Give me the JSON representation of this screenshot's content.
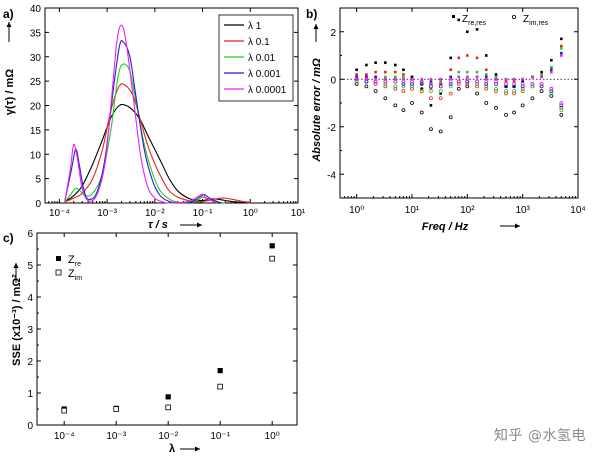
{
  "chart_data": [
    {
      "panel": "a)",
      "type": "line",
      "xlabel": "τ / s",
      "ylabel": "γ(τ) / mΩ",
      "xscale": "log",
      "xlim": [
        5e-05,
        10
      ],
      "ylim": [
        0,
        40
      ],
      "x_ticks": [
        "10⁻⁴",
        "10⁻³",
        "10⁻²",
        "10⁻¹",
        "10⁰",
        "10¹"
      ],
      "y_ticks": [
        "0",
        "5",
        "10",
        "15",
        "20",
        "25",
        "30",
        "35",
        "40"
      ],
      "legend_position": "top-right",
      "series": [
        {
          "name": "λ 1",
          "color": "#000000",
          "x": [
            0.00013,
            0.0002,
            0.0003,
            0.0005,
            0.0008,
            0.0012,
            0.0018,
            0.0025,
            0.0035,
            0.005,
            0.007,
            0.01,
            0.015,
            0.02,
            0.03,
            0.05,
            0.07,
            0.1,
            0.15,
            0.2,
            0.3,
            0.5,
            1
          ],
          "y": [
            0.3,
            1.5,
            3.5,
            8,
            13,
            17.5,
            20,
            20,
            19,
            17,
            14,
            11,
            7.5,
            5,
            2.5,
            1,
            0.6,
            0.5,
            0.8,
            0.8,
            0.5,
            0.2,
            0
          ]
        },
        {
          "name": "λ 0.1",
          "color": "#e8241c",
          "x": [
            0.00013,
            0.0002,
            0.0003,
            0.0005,
            0.0008,
            0.0012,
            0.0018,
            0.0025,
            0.0035,
            0.005,
            0.007,
            0.01,
            0.015,
            0.02,
            0.03,
            0.05,
            0.07,
            0.1,
            0.15,
            0.2,
            0.3,
            0.5,
            1
          ],
          "y": [
            0.2,
            1,
            2,
            5,
            11,
            19,
            24,
            24,
            22,
            17,
            12,
            8,
            4.5,
            2.5,
            1.2,
            0.5,
            0.3,
            0.3,
            0.6,
            0.9,
            1,
            0.6,
            0
          ]
        },
        {
          "name": "λ 0.01",
          "color": "#22cc22",
          "x": [
            0.00013,
            0.00018,
            0.00022,
            0.00027,
            0.00035,
            0.0005,
            0.0008,
            0.0012,
            0.0017,
            0.0022,
            0.003,
            0.004,
            0.006,
            0.009,
            0.013,
            0.02,
            0.03,
            0.05,
            0.08,
            0.1,
            0.13,
            0.2,
            0.3
          ],
          "y": [
            0.2,
            2,
            3,
            2.5,
            1.5,
            2,
            6,
            15,
            26,
            28.5,
            27,
            21,
            12,
            6,
            2.5,
            0.8,
            0.2,
            0.1,
            0.6,
            1.2,
            0.8,
            0.2,
            0
          ]
        },
        {
          "name": "λ 0.001",
          "color": "#2222cc",
          "x": [
            0.00013,
            0.00018,
            0.00022,
            0.00026,
            0.00032,
            0.0004,
            0.0006,
            0.0009,
            0.0013,
            0.0018,
            0.0022,
            0.003,
            0.004,
            0.006,
            0.009,
            0.013,
            0.02,
            0.03,
            0.06,
            0.09,
            0.11,
            0.15,
            0.25
          ],
          "y": [
            0.3,
            7,
            11,
            8,
            3,
            0.8,
            2,
            9,
            22,
            32,
            33,
            30,
            22,
            11,
            4.5,
            1.5,
            0.3,
            0.1,
            0.3,
            1.3,
            1.7,
            0.8,
            0
          ]
        },
        {
          "name": "λ 0.0001",
          "color": "#ee22ee",
          "x": [
            0.00013,
            0.00017,
            0.0002,
            0.00024,
            0.0003,
            0.0004,
            0.0006,
            0.0009,
            0.0012,
            0.0016,
            0.002,
            0.0025,
            0.0035,
            0.005,
            0.007,
            0.01,
            0.015,
            0.02,
            0.05,
            0.08,
            0.1,
            0.12,
            0.2
          ],
          "y": [
            0.3,
            7,
            12,
            9,
            3,
            0.5,
            1.5,
            8,
            20,
            33,
            36.5,
            33,
            22,
            10,
            3.5,
            1,
            0.2,
            0,
            0.3,
            1.3,
            1.8,
            1,
            0
          ]
        }
      ]
    },
    {
      "panel": "b)",
      "type": "scatter",
      "xlabel": "Freq / Hz",
      "ylabel": "Absolute error / mΩ",
      "xscale": "log",
      "xlim": [
        0.5,
        10000
      ],
      "ylim": [
        -5,
        3
      ],
      "x_ticks": [
        "10⁰",
        "10¹",
        "10²",
        "10³",
        "10⁴"
      ],
      "y_ticks": [
        "-4",
        "-2",
        "0",
        "2"
      ],
      "zero_line": true,
      "legend_position": "top",
      "legend": [
        "Z_re,res",
        "Z_im,res"
      ],
      "series": [
        {
          "color": "#000000",
          "marker": "filled",
          "x": [
            1,
            1.5,
            2.2,
            3.3,
            5,
            7,
            10,
            15,
            22,
            33,
            50,
            70,
            100,
            150,
            220,
            330,
            500,
            700,
            1000,
            1500,
            2200,
            3300,
            5000
          ],
          "y": [
            0.4,
            0.6,
            0.7,
            0.7,
            0.6,
            0.4,
            0.1,
            -0.4,
            -1.1,
            -0.6,
            0.9,
            2.5,
            2.0,
            2.1,
            1.0,
            0.2,
            -0.3,
            -0.3,
            -0.1,
            0.1,
            0.3,
            0.8,
            1.7
          ]
        },
        {
          "color": "#000000",
          "marker": "open",
          "x": [
            1,
            1.5,
            2.2,
            3.3,
            5,
            7,
            10,
            15,
            22,
            33,
            50,
            70,
            100,
            150,
            220,
            330,
            500,
            700,
            1000,
            1500,
            2200,
            3300,
            5000
          ],
          "y": [
            -0.2,
            -0.3,
            -0.5,
            -0.8,
            -1.1,
            -1.3,
            -1.0,
            -1.4,
            -2.1,
            -2.2,
            -1.6,
            -0.4,
            -0.3,
            -0.6,
            -1.0,
            -1.2,
            -1.5,
            -1.4,
            -1.1,
            -0.8,
            -0.5,
            -0.7,
            -1.5
          ]
        },
        {
          "color": "#e8241c",
          "marker": "filled",
          "x": [
            1,
            1.5,
            2.2,
            3.3,
            5,
            7,
            10,
            15,
            22,
            33,
            50,
            70,
            100,
            150,
            220,
            330,
            500,
            700,
            1000,
            1500,
            2200,
            3300,
            5000
          ],
          "y": [
            0.2,
            0.2,
            0.3,
            0.3,
            0.3,
            0.2,
            0.0,
            -0.2,
            -0.4,
            -0.2,
            0.4,
            0.9,
            1.0,
            0.9,
            0.4,
            0.1,
            -0.1,
            -0.1,
            0.0,
            0.1,
            0.2,
            0.5,
            1.4
          ]
        },
        {
          "color": "#e8241c",
          "marker": "open",
          "x": [
            1,
            1.5,
            2.2,
            3.3,
            5,
            7,
            10,
            15,
            22,
            33,
            50,
            70,
            100,
            150,
            220,
            330,
            500,
            700,
            1000,
            1500,
            2200,
            3300,
            5000
          ],
          "y": [
            -0.1,
            -0.1,
            -0.2,
            -0.3,
            -0.4,
            -0.5,
            -0.4,
            -0.5,
            -0.8,
            -0.8,
            -0.6,
            -0.2,
            -0.2,
            -0.3,
            -0.4,
            -0.5,
            -0.6,
            -0.6,
            -0.5,
            -0.3,
            -0.2,
            -0.4,
            -1.2
          ]
        },
        {
          "color": "#22cc22",
          "marker": "filled",
          "x": [
            1,
            1.5,
            2.2,
            3.3,
            5,
            7,
            10,
            15,
            22,
            33,
            50,
            70,
            100,
            150,
            220,
            330,
            500,
            700,
            1000,
            1500,
            2200,
            3300,
            5000
          ],
          "y": [
            0.1,
            0.1,
            0.1,
            0.1,
            0.1,
            0.1,
            0.0,
            -0.1,
            -0.2,
            -0.1,
            0.1,
            0.3,
            0.3,
            0.3,
            0.2,
            0.1,
            0.0,
            0.0,
            0.0,
            0.1,
            0.2,
            0.5,
            1.3
          ]
        },
        {
          "color": "#22cc22",
          "marker": "open",
          "x": [
            1,
            1.5,
            2.2,
            3.3,
            5,
            7,
            10,
            15,
            22,
            33,
            50,
            70,
            100,
            150,
            220,
            330,
            500,
            700,
            1000,
            1500,
            2200,
            3300,
            5000
          ],
          "y": [
            -0.1,
            -0.1,
            -0.1,
            -0.2,
            -0.3,
            -0.3,
            -0.3,
            -0.4,
            -0.5,
            -0.5,
            -0.3,
            -0.1,
            -0.1,
            -0.2,
            -0.3,
            -0.4,
            -0.5,
            -0.5,
            -0.4,
            -0.3,
            -0.3,
            -0.6,
            -1.3
          ]
        },
        {
          "color": "#2222cc",
          "marker": "filled",
          "x": [
            1,
            1.5,
            2.2,
            3.3,
            5,
            7,
            10,
            15,
            22,
            33,
            50,
            70,
            100,
            150,
            220,
            330,
            500,
            700,
            1000,
            1500,
            2200,
            3300,
            5000
          ],
          "y": [
            0.1,
            0.1,
            0.1,
            0.0,
            0.0,
            0.0,
            0.0,
            0.0,
            -0.1,
            0.0,
            0.1,
            0.1,
            0.1,
            0.1,
            0.1,
            0.0,
            0.0,
            0.0,
            0.0,
            0.1,
            0.1,
            0.4,
            1.1
          ]
        },
        {
          "color": "#2222cc",
          "marker": "open",
          "x": [
            1,
            1.5,
            2.2,
            3.3,
            5,
            7,
            10,
            15,
            22,
            33,
            50,
            70,
            100,
            150,
            220,
            330,
            500,
            700,
            1000,
            1500,
            2200,
            3300,
            5000
          ],
          "y": [
            0.0,
            -0.1,
            -0.1,
            -0.1,
            -0.1,
            -0.2,
            -0.2,
            -0.2,
            -0.3,
            -0.3,
            -0.2,
            -0.1,
            -0.1,
            -0.1,
            -0.2,
            -0.2,
            -0.3,
            -0.3,
            -0.3,
            -0.2,
            -0.3,
            -0.5,
            -1.1
          ]
        },
        {
          "color": "#ee22ee",
          "marker": "filled",
          "x": [
            1,
            1.5,
            2.2,
            3.3,
            5,
            7,
            10,
            15,
            22,
            33,
            50,
            70,
            100,
            150,
            220,
            330,
            500,
            700,
            1000,
            1500,
            2200,
            3300,
            5000
          ],
          "y": [
            0.0,
            0.0,
            0.0,
            0.0,
            0.0,
            0.0,
            0.0,
            0.0,
            0.0,
            0.0,
            0.0,
            0.1,
            0.1,
            0.1,
            0.0,
            0.0,
            0.0,
            0.0,
            0.0,
            0.1,
            0.1,
            0.3,
            1.0
          ]
        },
        {
          "color": "#ee22ee",
          "marker": "open",
          "x": [
            1,
            1.5,
            2.2,
            3.3,
            5,
            7,
            10,
            15,
            22,
            33,
            50,
            70,
            100,
            150,
            220,
            330,
            500,
            700,
            1000,
            1500,
            2200,
            3300,
            5000
          ],
          "y": [
            0.0,
            0.0,
            -0.1,
            -0.1,
            -0.1,
            -0.1,
            -0.1,
            -0.1,
            -0.2,
            -0.2,
            -0.1,
            -0.1,
            0.0,
            -0.1,
            -0.1,
            -0.1,
            -0.2,
            -0.2,
            -0.2,
            -0.2,
            -0.2,
            -0.4,
            -1.0
          ]
        }
      ]
    },
    {
      "panel": "c)",
      "type": "scatter",
      "xlabel": "λ",
      "ylabel": "SSE (x10⁻³) / mΩ²",
      "xscale": "log",
      "xlim": [
        3e-05,
        3
      ],
      "ylim": [
        0,
        6
      ],
      "x_ticks": [
        "10⁻⁴",
        "10⁻³",
        "10⁻²",
        "10⁻¹",
        "10⁰"
      ],
      "y_ticks": [
        "0",
        "1",
        "2",
        "3",
        "4",
        "5",
        "6"
      ],
      "legend_position": "top-left",
      "categories": [
        "10⁻⁴",
        "10⁻³",
        "10⁻²",
        "10⁻¹",
        "10⁰"
      ],
      "series": [
        {
          "name": "Z_re",
          "marker": "filled",
          "x": [
            0.0001,
            0.001,
            0.01,
            0.1,
            1
          ],
          "values": [
            0.5,
            0.52,
            0.88,
            1.7,
            5.6
          ]
        },
        {
          "name": "Z_im",
          "marker": "open",
          "x": [
            0.0001,
            0.001,
            0.01,
            0.1,
            1
          ],
          "values": [
            0.45,
            0.5,
            0.55,
            1.2,
            5.2
          ]
        }
      ]
    }
  ],
  "watermark": "知乎 @水氢电"
}
